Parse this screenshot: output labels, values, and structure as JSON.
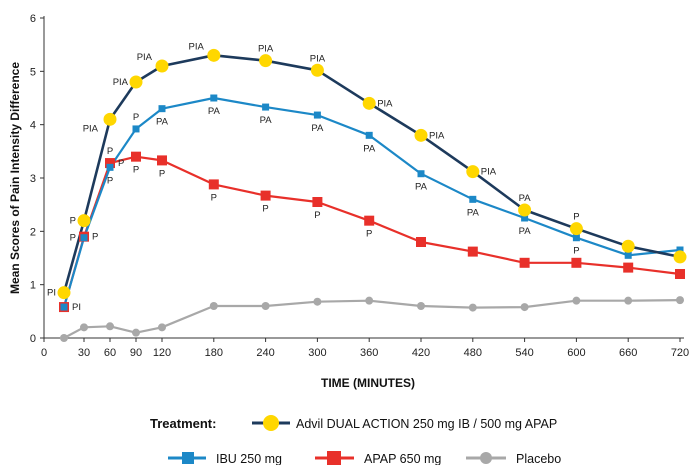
{
  "chart_data": {
    "type": "line",
    "xlabel": "TIME (MINUTES)",
    "ylabel": "Mean Scores of Pain Intensity Difference",
    "xlim": [
      0,
      720
    ],
    "ylim": [
      0,
      6
    ],
    "x_ticks": [
      0,
      30,
      60,
      90,
      120,
      180,
      240,
      300,
      360,
      420,
      480,
      540,
      600,
      660,
      720
    ],
    "y_ticks": [
      0,
      1,
      2,
      3,
      4,
      5,
      6
    ],
    "legend_title": "Treatment:",
    "legend_position": "bottom-center",
    "grid": false,
    "series": [
      {
        "name": "Advil DUAL ACTION 250 mg IB / 500 mg APAP",
        "line_color": "#1d3a5c",
        "marker_color": "#ffd700",
        "marker": "circle",
        "x": [
          15,
          30,
          60,
          90,
          120,
          180,
          240,
          300,
          360,
          420,
          480,
          540,
          600,
          660,
          720
        ],
        "y": [
          0.85,
          2.2,
          4.1,
          4.8,
          5.1,
          5.3,
          5.2,
          5.02,
          4.4,
          3.8,
          3.12,
          2.4,
          2.05,
          1.72,
          1.52
        ]
      },
      {
        "name": "IBU 250 mg",
        "line_color": "#1c88c7",
        "marker_color": "#1c88c7",
        "marker": "square",
        "x": [
          15,
          30,
          60,
          90,
          120,
          180,
          240,
          300,
          360,
          420,
          480,
          540,
          600,
          660,
          720
        ],
        "y": [
          0.58,
          1.88,
          3.2,
          3.92,
          4.3,
          4.5,
          4.33,
          4.18,
          3.8,
          3.08,
          2.6,
          2.25,
          1.88,
          1.55,
          1.65
        ]
      },
      {
        "name": "APAP 650 mg",
        "line_color": "#e8302a",
        "marker_color": "#e8302a",
        "marker": "square",
        "x": [
          15,
          30,
          60,
          90,
          120,
          180,
          240,
          300,
          360,
          420,
          480,
          540,
          600,
          660,
          720
        ],
        "y": [
          0.58,
          1.9,
          3.28,
          3.4,
          3.33,
          2.88,
          2.67,
          2.55,
          2.2,
          1.8,
          1.62,
          1.41,
          1.41,
          1.32,
          1.2
        ]
      },
      {
        "name": "Placebo",
        "line_color": "#a8a8a8",
        "marker_color": "#a8a8a8",
        "marker": "circle",
        "x": [
          15,
          30,
          60,
          90,
          120,
          180,
          240,
          300,
          360,
          420,
          480,
          540,
          600,
          660,
          720
        ],
        "y": [
          0.0,
          0.2,
          0.22,
          0.1,
          0.2,
          0.6,
          0.6,
          0.68,
          0.7,
          0.6,
          0.57,
          0.58,
          0.7,
          0.7,
          0.71
        ]
      }
    ],
    "annotations": [
      {
        "text": "PI",
        "x": 15,
        "y": 0.85,
        "anchor": "left"
      },
      {
        "text": "PI",
        "x": 15,
        "y": 0.58,
        "anchor": "right"
      },
      {
        "text": "P",
        "x": 30,
        "y": 2.2,
        "anchor": "left"
      },
      {
        "text": "P",
        "x": 30,
        "y": 1.88,
        "anchor": "left"
      },
      {
        "text": "P",
        "x": 30,
        "y": 1.9,
        "anchor": "right"
      },
      {
        "text": "PIA",
        "x": 60,
        "y": 4.1,
        "anchor": "below-left"
      },
      {
        "text": "P",
        "x": 60,
        "y": 3.28,
        "anchor": "above"
      },
      {
        "text": "P",
        "x": 60,
        "y": 3.2,
        "anchor": "below"
      },
      {
        "text": "P",
        "x": 60,
        "y": 3.28,
        "anchor": "right"
      },
      {
        "text": "PIA",
        "x": 90,
        "y": 4.8,
        "anchor": "left"
      },
      {
        "text": "P",
        "x": 90,
        "y": 3.92,
        "anchor": "above"
      },
      {
        "text": "P",
        "x": 90,
        "y": 3.4,
        "anchor": "below"
      },
      {
        "text": "PIA",
        "x": 120,
        "y": 5.1,
        "anchor": "above-left"
      },
      {
        "text": "PA",
        "x": 120,
        "y": 4.3,
        "anchor": "below"
      },
      {
        "text": "P",
        "x": 120,
        "y": 3.33,
        "anchor": "below"
      },
      {
        "text": "PIA",
        "x": 180,
        "y": 5.3,
        "anchor": "above-left"
      },
      {
        "text": "PA",
        "x": 180,
        "y": 4.5,
        "anchor": "below"
      },
      {
        "text": "P",
        "x": 180,
        "y": 2.88,
        "anchor": "below"
      },
      {
        "text": "PIA",
        "x": 240,
        "y": 5.2,
        "anchor": "above"
      },
      {
        "text": "PA",
        "x": 240,
        "y": 4.33,
        "anchor": "below"
      },
      {
        "text": "P",
        "x": 240,
        "y": 2.67,
        "anchor": "below"
      },
      {
        "text": "PIA",
        "x": 300,
        "y": 5.02,
        "anchor": "above"
      },
      {
        "text": "PA",
        "x": 300,
        "y": 4.18,
        "anchor": "below"
      },
      {
        "text": "P",
        "x": 300,
        "y": 2.55,
        "anchor": "below"
      },
      {
        "text": "PIA",
        "x": 360,
        "y": 4.4,
        "anchor": "right"
      },
      {
        "text": "PA",
        "x": 360,
        "y": 3.8,
        "anchor": "below"
      },
      {
        "text": "P",
        "x": 360,
        "y": 2.2,
        "anchor": "below"
      },
      {
        "text": "PIA",
        "x": 420,
        "y": 3.8,
        "anchor": "right"
      },
      {
        "text": "PA",
        "x": 420,
        "y": 3.08,
        "anchor": "below"
      },
      {
        "text": "PIA",
        "x": 480,
        "y": 3.12,
        "anchor": "right"
      },
      {
        "text": "PA",
        "x": 480,
        "y": 2.6,
        "anchor": "below"
      },
      {
        "text": "PA",
        "x": 540,
        "y": 2.4,
        "anchor": "above"
      },
      {
        "text": "PA",
        "x": 540,
        "y": 2.25,
        "anchor": "below"
      },
      {
        "text": "P",
        "x": 600,
        "y": 2.05,
        "anchor": "above"
      },
      {
        "text": "P",
        "x": 600,
        "y": 1.88,
        "anchor": "below"
      }
    ]
  }
}
